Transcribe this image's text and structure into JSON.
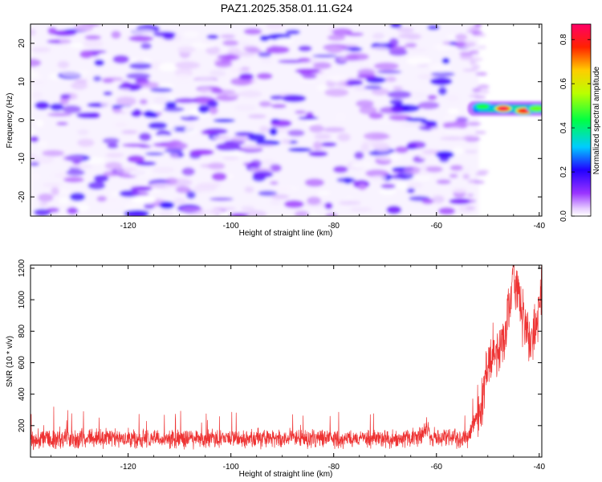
{
  "figure_title": "PAZ1.2025.358.01.11.G24",
  "chart_data": [
    {
      "type": "heatmap",
      "title": "",
      "xlabel": "Height of straight line (km)",
      "ylabel": "Frequency (Hz)",
      "xlim": [
        -139,
        -39.5
      ],
      "ylim": [
        -25,
        25
      ],
      "xticks": [
        -120,
        -100,
        -80,
        -60,
        -40
      ],
      "yticks": [
        -20,
        -10,
        0,
        10,
        20
      ],
      "xtick_labels": [
        "-120",
        "-100",
        "-80",
        "-60",
        "-40"
      ],
      "ytick_labels": [
        "-20",
        "-10",
        "0",
        "10",
        "20"
      ],
      "colorbar": {
        "label": "Normalized spectral amplitude",
        "range": [
          0,
          0.87
        ],
        "ticks": [
          0.0,
          0.2,
          0.4,
          0.6,
          0.8
        ],
        "tick_labels": [
          "0.0",
          "0.2",
          "0.4",
          "0.6",
          "0.8"
        ]
      },
      "noise_region": {
        "x_range": [
          -139,
          -53
        ],
        "amplitude_range": [
          0.0,
          0.2
        ]
      },
      "signal_band": {
        "x_range": [
          -53,
          -39.5
        ],
        "frequency_hz": 3,
        "hotspots": [
          {
            "x": -47,
            "y": 3,
            "value": 0.85
          },
          {
            "x": -43,
            "y": 2.4,
            "value": 0.8
          },
          {
            "x": -51,
            "y": 3.5,
            "value": 0.45
          },
          {
            "x": -40.5,
            "y": 3,
            "value": 0.5
          }
        ]
      }
    },
    {
      "type": "line",
      "title": "",
      "xlabel": "Height of straight line (km)",
      "ylabel": "SNR (10 * v/v)",
      "xlim": [
        -139,
        -39.5
      ],
      "ylim": [
        0,
        1220
      ],
      "xticks": [
        -120,
        -100,
        -80,
        -60,
        -40
      ],
      "yticks": [
        200,
        400,
        600,
        800,
        1000,
        1200
      ],
      "xtick_labels": [
        "-120",
        "-100",
        "-80",
        "-60",
        "-40"
      ],
      "ytick_labels": [
        "200",
        "400",
        "600",
        "800",
        "1000",
        "1200"
      ],
      "series": [
        {
          "name": "SNR",
          "color": "#ee3333",
          "trend": [
            {
              "x": -139,
              "y": 110
            },
            {
              "x": -130,
              "y": 120
            },
            {
              "x": -110,
              "y": 115
            },
            {
              "x": -90,
              "y": 120
            },
            {
              "x": -70,
              "y": 115
            },
            {
              "x": -63,
              "y": 125
            },
            {
              "x": -62,
              "y": 190
            },
            {
              "x": -61,
              "y": 130
            },
            {
              "x": -54,
              "y": 115
            },
            {
              "x": -51.5,
              "y": 300
            },
            {
              "x": -50,
              "y": 620
            },
            {
              "x": -48,
              "y": 680
            },
            {
              "x": -46.5,
              "y": 790
            },
            {
              "x": -45,
              "y": 1050
            },
            {
              "x": -44,
              "y": 1000
            },
            {
              "x": -42,
              "y": 700
            },
            {
              "x": -41,
              "y": 760
            },
            {
              "x": -39.5,
              "y": 1070
            }
          ],
          "noise_amplitude_low": 60,
          "noise_amplitude_high": 180,
          "peak_value": 1220
        }
      ]
    }
  ]
}
